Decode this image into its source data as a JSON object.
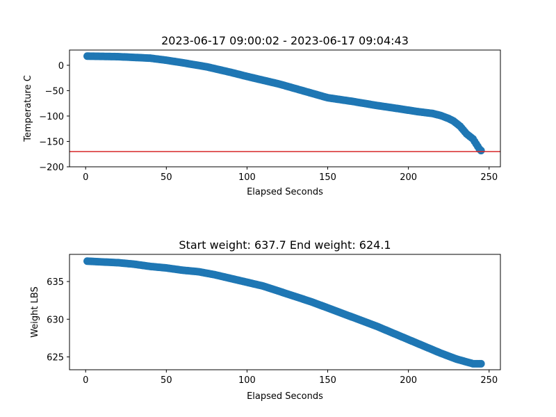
{
  "chart_data": [
    {
      "type": "scatter",
      "title": "2023-06-17 09:00:02 - 2023-06-17 09:04:43",
      "xlabel": "Elapsed Seconds",
      "ylabel": "Temperature C",
      "xlim": [
        -10,
        257
      ],
      "ylim": [
        -200,
        30
      ],
      "xticks": [
        0,
        50,
        100,
        150,
        200,
        250
      ],
      "yticks": [
        0,
        -50,
        -100,
        -150,
        -200
      ],
      "ytick_labels": [
        "0",
        "−50",
        "−100",
        "−150",
        "−200"
      ],
      "marker_color": "#1f77b4",
      "reference_line": {
        "y": -170,
        "color": "#d62728"
      },
      "grid": false,
      "series": [
        {
          "x": [
            1,
            20,
            40,
            50,
            60,
            75,
            90,
            100,
            120,
            140,
            150,
            165,
            180,
            195,
            205,
            215,
            220,
            225,
            228,
            232,
            236,
            240,
            242,
            244,
            245
          ],
          "y": [
            18,
            17,
            14,
            10,
            5,
            -3,
            -14,
            -22,
            -37,
            -55,
            -64,
            -71,
            -79,
            -86,
            -91,
            -95,
            -99,
            -105,
            -110,
            -120,
            -135,
            -145,
            -155,
            -165,
            -168
          ]
        }
      ]
    },
    {
      "type": "scatter",
      "title": "Start weight: 637.7 End weight: 624.1",
      "xlabel": "Elapsed Seconds",
      "ylabel": "Weight LBS",
      "xlim": [
        -10,
        257
      ],
      "ylim": [
        623.3,
        638.6
      ],
      "xticks": [
        0,
        50,
        100,
        150,
        200,
        250
      ],
      "yticks": [
        625,
        630,
        635
      ],
      "ytick_labels": [
        "625",
        "630",
        "635"
      ],
      "marker_color": "#1f77b4",
      "grid": false,
      "series": [
        {
          "x": [
            1,
            10,
            20,
            30,
            40,
            50,
            60,
            70,
            80,
            90,
            100,
            110,
            120,
            130,
            140,
            150,
            160,
            170,
            180,
            190,
            200,
            210,
            220,
            230,
            240,
            245
          ],
          "y": [
            637.7,
            637.6,
            637.5,
            637.3,
            637.0,
            636.8,
            636.5,
            636.3,
            635.9,
            635.4,
            634.9,
            634.4,
            633.7,
            633.0,
            632.3,
            631.5,
            630.7,
            629.9,
            629.1,
            628.2,
            627.3,
            626.4,
            625.5,
            624.7,
            624.1,
            624.1
          ]
        }
      ]
    }
  ]
}
